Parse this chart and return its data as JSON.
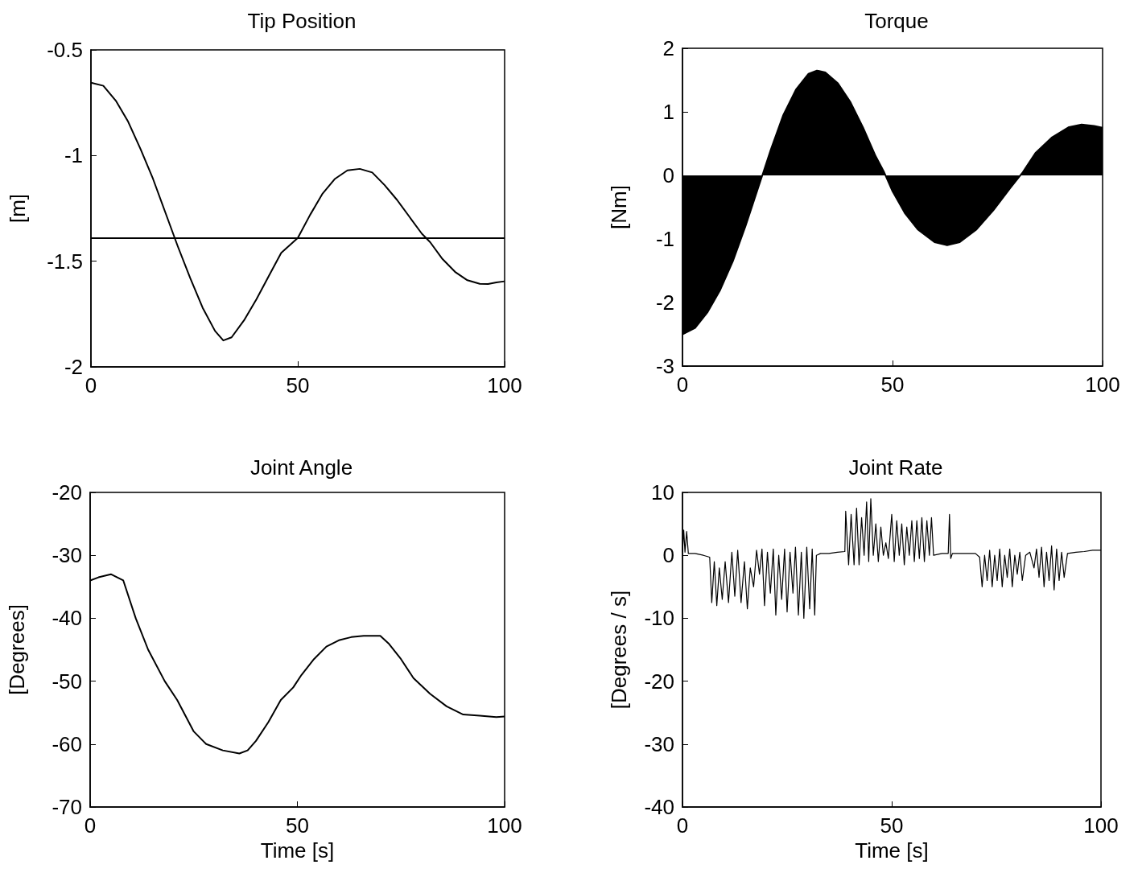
{
  "chart_data": [
    {
      "type": "line",
      "title": "Tip Position",
      "ylabel": "[m]",
      "color": "#000000",
      "marker": "none",
      "xlim": [
        0,
        100
      ],
      "ylim": [
        -2,
        -0.5
      ],
      "xticks": [
        0,
        50,
        100
      ],
      "yticks": [
        -2,
        -1.5,
        -1,
        -0.5
      ],
      "x": [
        0,
        3,
        6,
        9,
        12,
        15,
        18,
        21,
        24,
        27,
        30,
        32,
        34,
        37,
        40,
        43,
        46,
        50,
        53,
        56,
        59,
        62,
        65,
        68,
        71,
        74,
        77,
        80,
        82,
        85,
        88,
        91,
        94,
        96,
        98,
        100
      ],
      "values": [
        -0.655,
        -0.67,
        -0.74,
        -0.84,
        -0.97,
        -1.11,
        -1.27,
        -1.43,
        -1.58,
        -1.72,
        -1.83,
        -1.875,
        -1.86,
        -1.78,
        -1.68,
        -1.57,
        -1.46,
        -1.39,
        -1.28,
        -1.18,
        -1.11,
        -1.07,
        -1.063,
        -1.08,
        -1.14,
        -1.21,
        -1.29,
        -1.37,
        -1.41,
        -1.49,
        -1.55,
        -1.59,
        -1.607,
        -1.608,
        -1.6,
        -1.595
      ],
      "ref_lines": [
        {
          "axis": "y",
          "value": -1.39,
          "color": "#000000"
        }
      ]
    },
    {
      "type": "area",
      "title": "Torque",
      "ylabel": "[Nm]",
      "color": "#000000",
      "marker": "none",
      "xlim": [
        0,
        100
      ],
      "ylim": [
        -3,
        2
      ],
      "xticks": [
        0,
        50,
        100
      ],
      "yticks": [
        -3,
        -2,
        -1,
        0,
        1,
        2
      ],
      "x": [
        0,
        3,
        6,
        9,
        12,
        15,
        18,
        19,
        21,
        24,
        27,
        30,
        32,
        34,
        37,
        40,
        43,
        46,
        48,
        50,
        53,
        56,
        60,
        63,
        66,
        70,
        74,
        78,
        81,
        84,
        88,
        92,
        95,
        98,
        100
      ],
      "values": [
        -2.5,
        -2.4,
        -2.15,
        -1.8,
        -1.35,
        -0.8,
        -0.2,
        0,
        0.4,
        0.95,
        1.35,
        1.6,
        1.65,
        1.62,
        1.45,
        1.15,
        0.75,
        0.3,
        0.05,
        -0.25,
        -0.6,
        -0.85,
        -1.05,
        -1.1,
        -1.05,
        -0.85,
        -0.55,
        -0.2,
        0.05,
        0.35,
        0.6,
        0.76,
        0.8,
        0.78,
        0.75
      ]
    },
    {
      "type": "line",
      "title": "Joint Angle",
      "xlabel": "Time [s]",
      "ylabel": "[Degrees]",
      "color": "#000000",
      "marker": "none",
      "xlim": [
        0,
        100
      ],
      "ylim": [
        -70,
        -20
      ],
      "xticks": [
        0,
        50,
        100
      ],
      "yticks": [
        -70,
        -60,
        -50,
        -40,
        -30,
        -20
      ],
      "x": [
        0,
        2,
        5,
        8,
        11,
        14,
        18,
        21,
        25,
        28,
        32,
        36,
        38,
        40,
        43,
        46,
        49,
        51,
        54,
        57,
        60,
        63,
        66,
        70,
        72,
        75,
        78,
        82,
        86,
        90,
        94,
        98,
        100
      ],
      "values": [
        -34,
        -33.5,
        -33,
        -34,
        -40,
        -45,
        -50,
        -53,
        -58,
        -60,
        -61,
        -61.5,
        -61,
        -59.5,
        -56.5,
        -53,
        -51,
        -49,
        -46.5,
        -44.5,
        -43.5,
        -43,
        -42.8,
        -42.8,
        -44,
        -46.5,
        -49.5,
        -52,
        -54,
        -55.3,
        -55.5,
        -55.7,
        -55.6
      ]
    },
    {
      "type": "line",
      "title": "Joint Rate",
      "xlabel": "Time [s]",
      "ylabel": "[Degrees / s]",
      "color": "#000000",
      "marker": "none",
      "xlim": [
        0,
        100
      ],
      "ylim": [
        -40,
        10
      ],
      "xticks": [
        0,
        50,
        100
      ],
      "yticks": [
        -40,
        -30,
        -20,
        -10,
        0,
        10
      ],
      "x": [
        0,
        0.3,
        0.6,
        1,
        1.4,
        3,
        5,
        6.5,
        7,
        7.6,
        8.2,
        8.8,
        9.5,
        10.2,
        11,
        11.8,
        12.5,
        13.2,
        14,
        14.8,
        15.5,
        16.2,
        17,
        17.7,
        18.4,
        19,
        19.6,
        20.3,
        21,
        21.7,
        22.3,
        23,
        23.7,
        24.4,
        25,
        25.7,
        26.4,
        27,
        27.7,
        28.4,
        29,
        29.7,
        30.4,
        31,
        31.6,
        32,
        33,
        35,
        37,
        38.8,
        39,
        39.7,
        40.3,
        41,
        41.6,
        42.2,
        42.8,
        43.4,
        44,
        44.5,
        45,
        45.6,
        46.2,
        46.8,
        47.4,
        48,
        48.6,
        49.2,
        50,
        50.6,
        51.2,
        51.8,
        52.4,
        53,
        53.6,
        54.2,
        54.8,
        55.4,
        56,
        56.6,
        57.2,
        57.8,
        58.4,
        59,
        59.5,
        60,
        62,
        63.5,
        63.8,
        64.1,
        64.5,
        67,
        70,
        71,
        71.6,
        72.2,
        72.8,
        73.4,
        74,
        74.6,
        75.2,
        75.8,
        76.4,
        77,
        77.6,
        78.2,
        78.8,
        79.4,
        80,
        80.6,
        81.2,
        82,
        83,
        84,
        84.6,
        85.2,
        85.8,
        86.4,
        87,
        87.6,
        88.2,
        88.8,
        89.4,
        90,
        90.6,
        91.2,
        92,
        94,
        96,
        98,
        100
      ],
      "values": [
        0.5,
        4,
        0.5,
        3.8,
        0.3,
        0.3,
        0,
        -0.3,
        -7.5,
        -1,
        -8,
        -2,
        -7,
        -1,
        -7.5,
        0.5,
        -6.5,
        0.8,
        -7.5,
        -1,
        -8.5,
        -2,
        -5,
        0.8,
        -3,
        1,
        -8,
        0.5,
        -6,
        1,
        -9.5,
        0,
        -7,
        1,
        -9,
        0.5,
        -6,
        1.3,
        -9.5,
        0.5,
        -10,
        1.3,
        -8.5,
        1,
        -9.5,
        0,
        0.3,
        0.3,
        0.5,
        0.6,
        7,
        -1.5,
        6.5,
        -1.5,
        7.5,
        -1.5,
        6,
        0,
        8.5,
        -1,
        9,
        0,
        5,
        -1,
        4.5,
        0,
        2,
        -0.5,
        6.5,
        -1,
        5.5,
        0,
        5,
        -1.5,
        4.5,
        0,
        5.5,
        -1,
        5.5,
        -0.5,
        6,
        -1,
        5.5,
        0,
        6,
        0,
        0.3,
        0.3,
        6.5,
        -0.5,
        0.3,
        0.3,
        0.3,
        -0.3,
        -5,
        0,
        -4,
        0.8,
        -5,
        0,
        -4,
        1,
        -5,
        0,
        -3.5,
        1,
        -5,
        0,
        -3,
        0.5,
        -4,
        0,
        0.5,
        -2,
        1,
        -3.5,
        1.3,
        -5,
        0.5,
        -4,
        1.5,
        -5.5,
        1,
        -4,
        0.5,
        -3.5,
        0.3,
        0.5,
        0.6,
        0.8,
        0.8
      ]
    }
  ]
}
